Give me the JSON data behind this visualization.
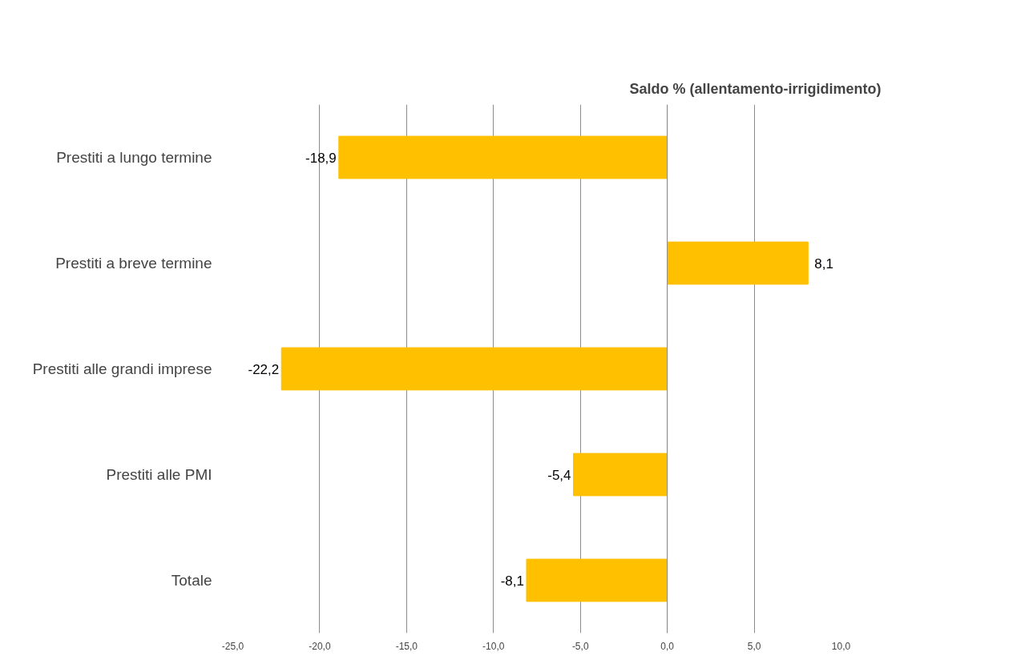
{
  "chart_data": {
    "type": "bar",
    "orientation": "horizontal",
    "title": "Saldo % (allentamento-irrigidimento)",
    "categories": [
      "Prestiti a lungo termine",
      "Prestiti a breve termine",
      "Prestiti alle grandi imprese",
      "Prestiti alle PMI",
      "Totale"
    ],
    "values": [
      -18.9,
      8.1,
      -22.2,
      -5.4,
      -8.1
    ],
    "value_labels": [
      "-18,9",
      "8,1",
      "-22,2",
      "-5,4",
      "-8,1"
    ],
    "color": "#ffc000",
    "xlim": [
      -25,
      10
    ],
    "xticks": [
      {
        "value": -25,
        "label": "-25,0"
      },
      {
        "value": -20,
        "label": "-20,0"
      },
      {
        "value": -15,
        "label": "-15,0"
      },
      {
        "value": -10,
        "label": "-10,0"
      },
      {
        "value": -5,
        "label": "-5,0"
      },
      {
        "value": 0,
        "label": "0,0"
      },
      {
        "value": 5,
        "label": "5,0"
      },
      {
        "value": 10,
        "label": "10,0"
      }
    ],
    "grid": "x"
  }
}
